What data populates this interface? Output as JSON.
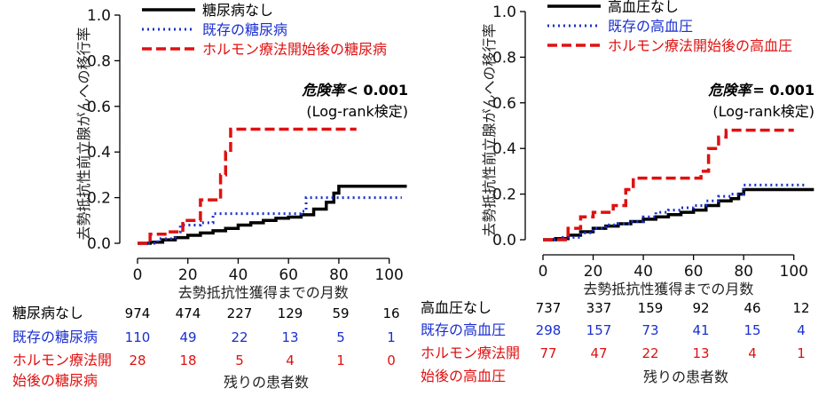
{
  "chart_data": [
    {
      "type": "line",
      "ylabel": "去勢抵抗性前立腺がんへの移行率",
      "xlabel": "去勢抵抗性獲得までの月数",
      "xlim": [
        0,
        110
      ],
      "ylim": [
        0,
        1.0
      ],
      "x_ticks": [
        "0",
        "20",
        "40",
        "60",
        "80",
        "100"
      ],
      "y_ticks": [
        "0.0",
        "0.2",
        "0.4",
        "0.6",
        "0.8",
        "1.0"
      ],
      "annotation": {
        "main_prefix": "危険率",
        "main_value": "< 0.001",
        "sub": "(Log-rank検定)"
      },
      "series": [
        {
          "name": "糖尿病なし",
          "color": "#000000",
          "style": "solid",
          "steps": [
            [
              0,
              0
            ],
            [
              5,
              0.005
            ],
            [
              10,
              0.015
            ],
            [
              15,
              0.025
            ],
            [
              20,
              0.035
            ],
            [
              25,
              0.045
            ],
            [
              30,
              0.055
            ],
            [
              35,
              0.065
            ],
            [
              40,
              0.08
            ],
            [
              45,
              0.09
            ],
            [
              50,
              0.1
            ],
            [
              55,
              0.11
            ],
            [
              60,
              0.115
            ],
            [
              65,
              0.125
            ],
            [
              70,
              0.15
            ],
            [
              75,
              0.18
            ],
            [
              78,
              0.22
            ],
            [
              80,
              0.25
            ],
            [
              107,
              0.25
            ]
          ]
        },
        {
          "name": "既存の糖尿病",
          "color": "#1a2fd0",
          "style": "dotted",
          "steps": [
            [
              0,
              0
            ],
            [
              8,
              0.02
            ],
            [
              15,
              0.05
            ],
            [
              17,
              0.08
            ],
            [
              25,
              0.09
            ],
            [
              30,
              0.13
            ],
            [
              35,
              0.13
            ],
            [
              65,
              0.14
            ],
            [
              67,
              0.2
            ],
            [
              105,
              0.2
            ]
          ]
        },
        {
          "name": "ホルモン療法開始後の糖尿病",
          "color": "#e01010",
          "style": "dashed",
          "steps": [
            [
              0,
              0
            ],
            [
              5,
              0.04
            ],
            [
              12,
              0.05
            ],
            [
              18,
              0.1
            ],
            [
              25,
              0.19
            ],
            [
              33,
              0.3
            ],
            [
              35,
              0.4
            ],
            [
              37,
              0.5
            ],
            [
              87,
              0.5
            ]
          ]
        }
      ],
      "risk_table": {
        "title": "残りの患者数",
        "rows": [
          {
            "label": "糖尿病なし",
            "color": "#000000",
            "values": [
              "974",
              "474",
              "227",
              "129",
              "59",
              "16"
            ]
          },
          {
            "label": "既存の糖尿病",
            "color": "#1a2fd0",
            "values": [
              "110",
              "49",
              "22",
              "13",
              "5",
              "1"
            ]
          },
          {
            "label_line1": "ホルモン療法開",
            "label_line2": "始後の糖尿病",
            "color": "#e01010",
            "values": [
              "28",
              "18",
              "5",
              "4",
              "1",
              "0"
            ]
          }
        ]
      }
    },
    {
      "type": "line",
      "ylabel": "去勢抵抗性前立腺がんへの移行率",
      "xlabel": "去勢抵抗性獲得までの月数",
      "xlim": [
        0,
        110
      ],
      "ylim": [
        0,
        1.0
      ],
      "x_ticks": [
        "0",
        "20",
        "40",
        "60",
        "80",
        "100"
      ],
      "y_ticks": [
        "0.0",
        "0.2",
        "0.4",
        "0.6",
        "0.8",
        "1.0"
      ],
      "annotation": {
        "main_prefix": "危険率",
        "main_value": "= 0.001",
        "sub": "(Log-rank検定)"
      },
      "series": [
        {
          "name": "高血圧なし",
          "color": "#000000",
          "style": "solid",
          "steps": [
            [
              0,
              0
            ],
            [
              5,
              0.005
            ],
            [
              10,
              0.02
            ],
            [
              15,
              0.035
            ],
            [
              20,
              0.05
            ],
            [
              25,
              0.06
            ],
            [
              30,
              0.07
            ],
            [
              35,
              0.08
            ],
            [
              40,
              0.09
            ],
            [
              45,
              0.1
            ],
            [
              50,
              0.11
            ],
            [
              55,
              0.12
            ],
            [
              60,
              0.13
            ],
            [
              65,
              0.15
            ],
            [
              70,
              0.17
            ],
            [
              75,
              0.18
            ],
            [
              78,
              0.2
            ],
            [
              80,
              0.22
            ],
            [
              108,
              0.22
            ]
          ]
        },
        {
          "name": "既存の高血圧",
          "color": "#1a2fd0",
          "style": "dotted",
          "steps": [
            [
              0,
              0
            ],
            [
              8,
              0.01
            ],
            [
              15,
              0.03
            ],
            [
              20,
              0.05
            ],
            [
              25,
              0.065
            ],
            [
              30,
              0.07
            ],
            [
              35,
              0.08
            ],
            [
              40,
              0.1
            ],
            [
              45,
              0.12
            ],
            [
              50,
              0.13
            ],
            [
              55,
              0.14
            ],
            [
              60,
              0.15
            ],
            [
              65,
              0.17
            ],
            [
              70,
              0.19
            ],
            [
              75,
              0.2
            ],
            [
              80,
              0.24
            ],
            [
              105,
              0.24
            ]
          ]
        },
        {
          "name": "ホルモン療法開始後の高血圧",
          "color": "#e01010",
          "style": "dashed",
          "steps": [
            [
              0,
              0
            ],
            [
              10,
              0.05
            ],
            [
              15,
              0.1
            ],
            [
              20,
              0.12
            ],
            [
              28,
              0.15
            ],
            [
              33,
              0.22
            ],
            [
              36,
              0.27
            ],
            [
              60,
              0.27
            ],
            [
              63,
              0.3
            ],
            [
              66,
              0.4
            ],
            [
              70,
              0.45
            ],
            [
              73,
              0.48
            ],
            [
              100,
              0.48
            ]
          ]
        }
      ],
      "risk_table": {
        "title": "残りの患者数",
        "rows": [
          {
            "label": "高血圧なし",
            "color": "#000000",
            "values": [
              "737",
              "337",
              "159",
              "92",
              "46",
              "12"
            ]
          },
          {
            "label": "既存の高血圧",
            "color": "#1a2fd0",
            "values": [
              "298",
              "157",
              "73",
              "41",
              "15",
              "4"
            ]
          },
          {
            "label_line1": "ホルモン療法開",
            "label_line2": "始後の高血圧",
            "color": "#e01010",
            "values": [
              "77",
              "47",
              "22",
              "13",
              "4",
              "1"
            ]
          }
        ]
      }
    }
  ]
}
